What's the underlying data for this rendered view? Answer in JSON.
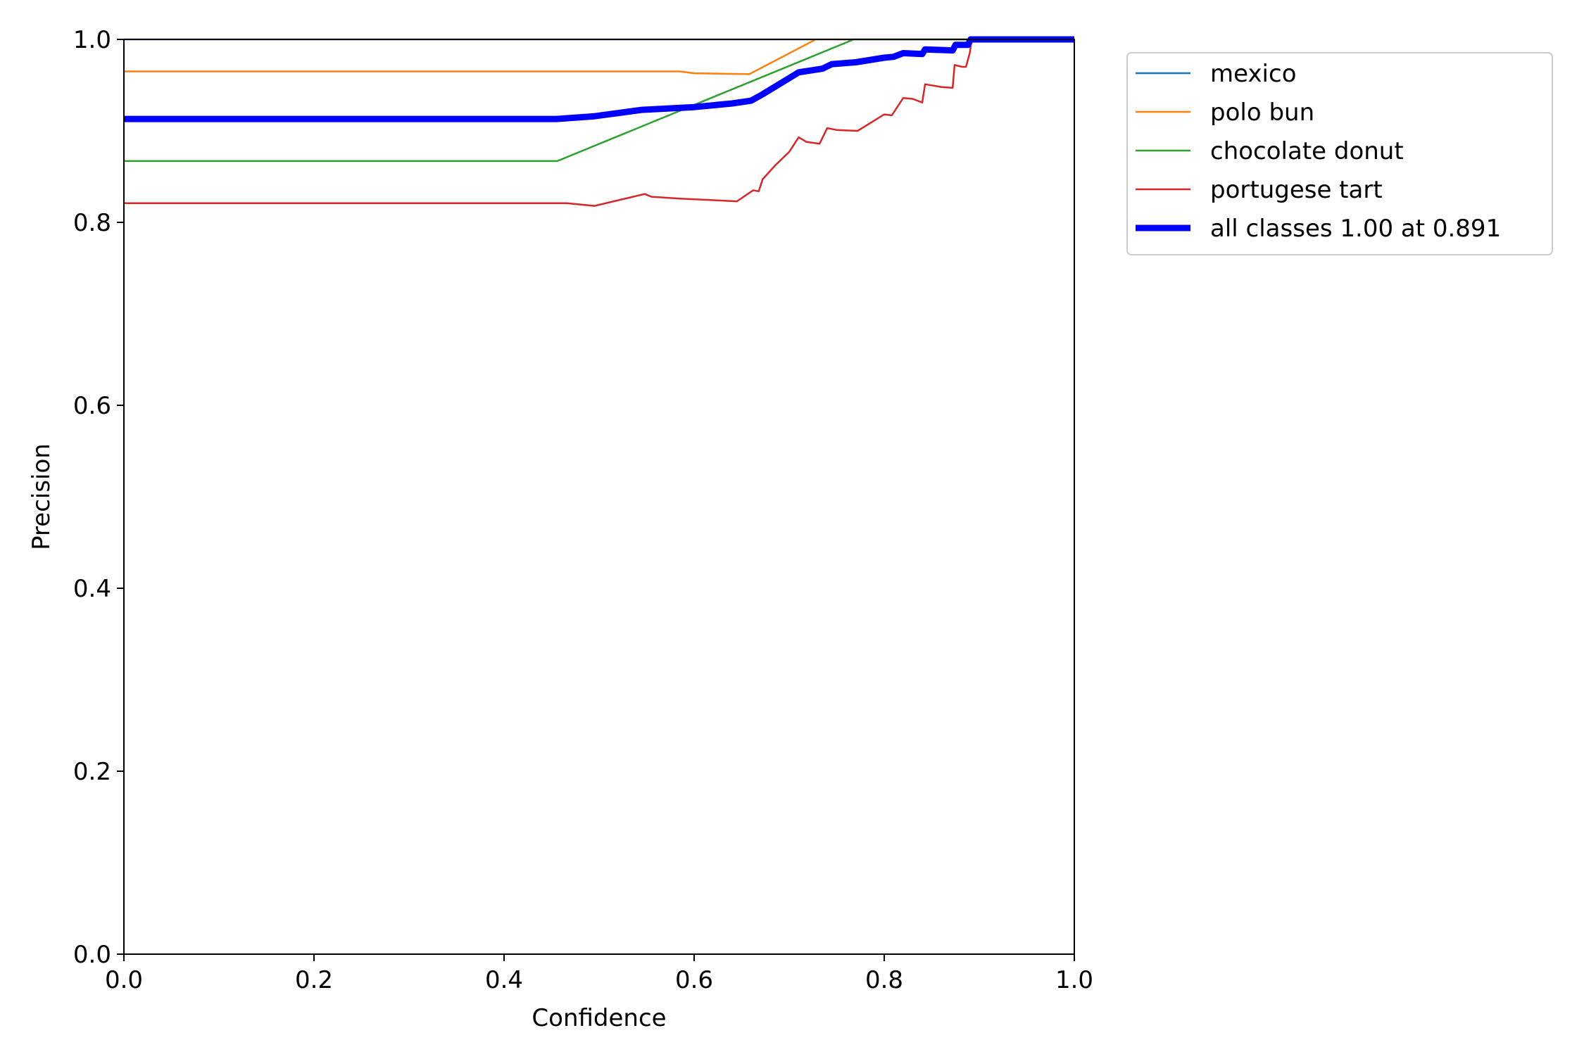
{
  "chart_data": {
    "type": "line",
    "title": "",
    "xlabel": "Confidence",
    "ylabel": "Precision",
    "xlim": [
      0,
      1
    ],
    "ylim": [
      0,
      1
    ],
    "xticks": [
      "0.0",
      "0.2",
      "0.4",
      "0.6",
      "0.8",
      "1.0"
    ],
    "yticks": [
      "0.0",
      "0.2",
      "0.4",
      "0.6",
      "0.8",
      "1.0"
    ],
    "grid": false,
    "legend_position": "outside-top-right",
    "series": [
      {
        "name": "mexico",
        "color": "#1f77b4",
        "emphasis": false,
        "points": [
          [
            0.0,
            1.0
          ],
          [
            1.0,
            1.0
          ]
        ]
      },
      {
        "name": "polo bun",
        "color": "#ff7f0e",
        "emphasis": false,
        "points": [
          [
            0.0,
            0.965
          ],
          [
            0.585,
            0.965
          ],
          [
            0.6,
            0.963
          ],
          [
            0.658,
            0.962
          ],
          [
            0.728,
            1.0
          ],
          [
            1.0,
            1.0
          ]
        ]
      },
      {
        "name": "chocolate donut",
        "color": "#2ca02c",
        "emphasis": false,
        "points": [
          [
            0.0,
            0.867
          ],
          [
            0.456,
            0.867
          ],
          [
            0.768,
            1.0
          ],
          [
            1.0,
            1.0
          ]
        ]
      },
      {
        "name": "portugese tart",
        "color": "#d62728",
        "emphasis": false,
        "points": [
          [
            0.0,
            0.821
          ],
          [
            0.466,
            0.821
          ],
          [
            0.495,
            0.818
          ],
          [
            0.548,
            0.831
          ],
          [
            0.555,
            0.828
          ],
          [
            0.585,
            0.826
          ],
          [
            0.645,
            0.823
          ],
          [
            0.662,
            0.835
          ],
          [
            0.668,
            0.834
          ],
          [
            0.672,
            0.847
          ],
          [
            0.685,
            0.862
          ],
          [
            0.7,
            0.877
          ],
          [
            0.71,
            0.893
          ],
          [
            0.718,
            0.888
          ],
          [
            0.732,
            0.886
          ],
          [
            0.74,
            0.903
          ],
          [
            0.75,
            0.901
          ],
          [
            0.772,
            0.9
          ],
          [
            0.8,
            0.918
          ],
          [
            0.808,
            0.917
          ],
          [
            0.82,
            0.936
          ],
          [
            0.83,
            0.935
          ],
          [
            0.84,
            0.931
          ],
          [
            0.843,
            0.951
          ],
          [
            0.86,
            0.948
          ],
          [
            0.872,
            0.947
          ],
          [
            0.874,
            0.972
          ],
          [
            0.882,
            0.97
          ],
          [
            0.886,
            0.97
          ],
          [
            0.89,
            0.985
          ],
          [
            0.892,
            1.0
          ],
          [
            1.0,
            1.0
          ]
        ]
      },
      {
        "name": "all classes 1.00 at 0.891",
        "color": "#0000ff",
        "emphasis": true,
        "points": [
          [
            0.0,
            0.913
          ],
          [
            0.455,
            0.913
          ],
          [
            0.495,
            0.916
          ],
          [
            0.545,
            0.923
          ],
          [
            0.6,
            0.926
          ],
          [
            0.64,
            0.93
          ],
          [
            0.66,
            0.933
          ],
          [
            0.672,
            0.94
          ],
          [
            0.71,
            0.964
          ],
          [
            0.735,
            0.968
          ],
          [
            0.745,
            0.973
          ],
          [
            0.77,
            0.975
          ],
          [
            0.8,
            0.98
          ],
          [
            0.81,
            0.981
          ],
          [
            0.82,
            0.985
          ],
          [
            0.84,
            0.984
          ],
          [
            0.843,
            0.989
          ],
          [
            0.872,
            0.988
          ],
          [
            0.875,
            0.994
          ],
          [
            0.888,
            0.994
          ],
          [
            0.891,
            1.0
          ],
          [
            1.0,
            1.0
          ]
        ]
      }
    ]
  }
}
